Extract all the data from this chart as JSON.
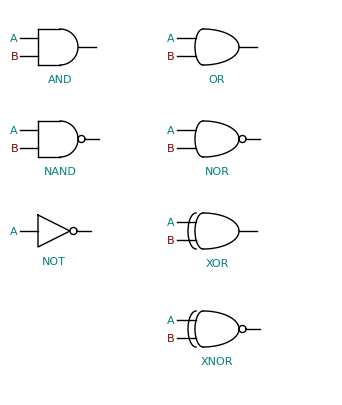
{
  "background_color": "#ffffff",
  "line_color": "#000000",
  "label_color_A": "#008080",
  "label_color_B": "#800000",
  "gate_label_color": "#008080",
  "font_size_label": 8,
  "font_size_gate": 8,
  "gates": [
    {
      "name": "AND",
      "col": 0,
      "row": 0,
      "bubble": false,
      "xor": false
    },
    {
      "name": "OR",
      "col": 1,
      "row": 0,
      "bubble": false,
      "xor": false
    },
    {
      "name": "NAND",
      "col": 0,
      "row": 1,
      "bubble": true,
      "xor": false
    },
    {
      "name": "NOR",
      "col": 1,
      "row": 1,
      "bubble": true,
      "xor": false
    },
    {
      "name": "NOT",
      "col": 0,
      "row": 2,
      "bubble": true,
      "xor": false
    },
    {
      "name": "XOR",
      "col": 1,
      "row": 2,
      "bubble": false,
      "xor": true
    },
    {
      "name": "XNOR",
      "col": 1,
      "row": 3,
      "bubble": true,
      "xor": true
    }
  ]
}
